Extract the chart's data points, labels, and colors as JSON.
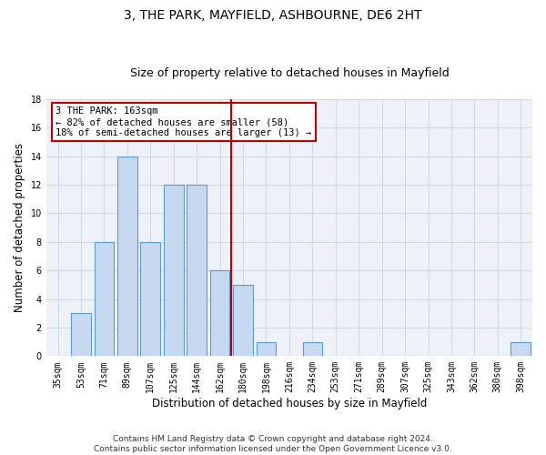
{
  "title1": "3, THE PARK, MAYFIELD, ASHBOURNE, DE6 2HT",
  "title2": "Size of property relative to detached houses in Mayfield",
  "xlabel": "Distribution of detached houses by size in Mayfield",
  "ylabel": "Number of detached properties",
  "categories": [
    "35sqm",
    "53sqm",
    "71sqm",
    "89sqm",
    "107sqm",
    "125sqm",
    "144sqm",
    "162sqm",
    "180sqm",
    "198sqm",
    "216sqm",
    "234sqm",
    "253sqm",
    "271sqm",
    "289sqm",
    "307sqm",
    "325sqm",
    "343sqm",
    "362sqm",
    "380sqm",
    "398sqm"
  ],
  "values": [
    0,
    3,
    8,
    14,
    8,
    12,
    12,
    6,
    5,
    1,
    0,
    1,
    0,
    0,
    0,
    0,
    0,
    0,
    0,
    0,
    1
  ],
  "bar_color": "#c6d9f0",
  "bar_edgecolor": "#5b9bd5",
  "vline_x": 7.5,
  "vline_color": "#c00000",
  "annotation_text": "3 THE PARK: 163sqm\n← 82% of detached houses are smaller (58)\n18% of semi-detached houses are larger (13) →",
  "annotation_box_edgecolor": "#c00000",
  "annotation_box_facecolor": "#ffffff",
  "ylim": [
    0,
    18
  ],
  "yticks": [
    0,
    2,
    4,
    6,
    8,
    10,
    12,
    14,
    16,
    18
  ],
  "grid_color": "#d0d8e8",
  "background_color": "#eef2f8",
  "footer_text": "Contains HM Land Registry data © Crown copyright and database right 2024.\nContains public sector information licensed under the Open Government Licence v3.0.",
  "title1_fontsize": 10,
  "title2_fontsize": 9,
  "xlabel_fontsize": 8.5,
  "ylabel_fontsize": 8.5,
  "tick_fontsize": 7,
  "annotation_fontsize": 7.5,
  "footer_fontsize": 6.5
}
